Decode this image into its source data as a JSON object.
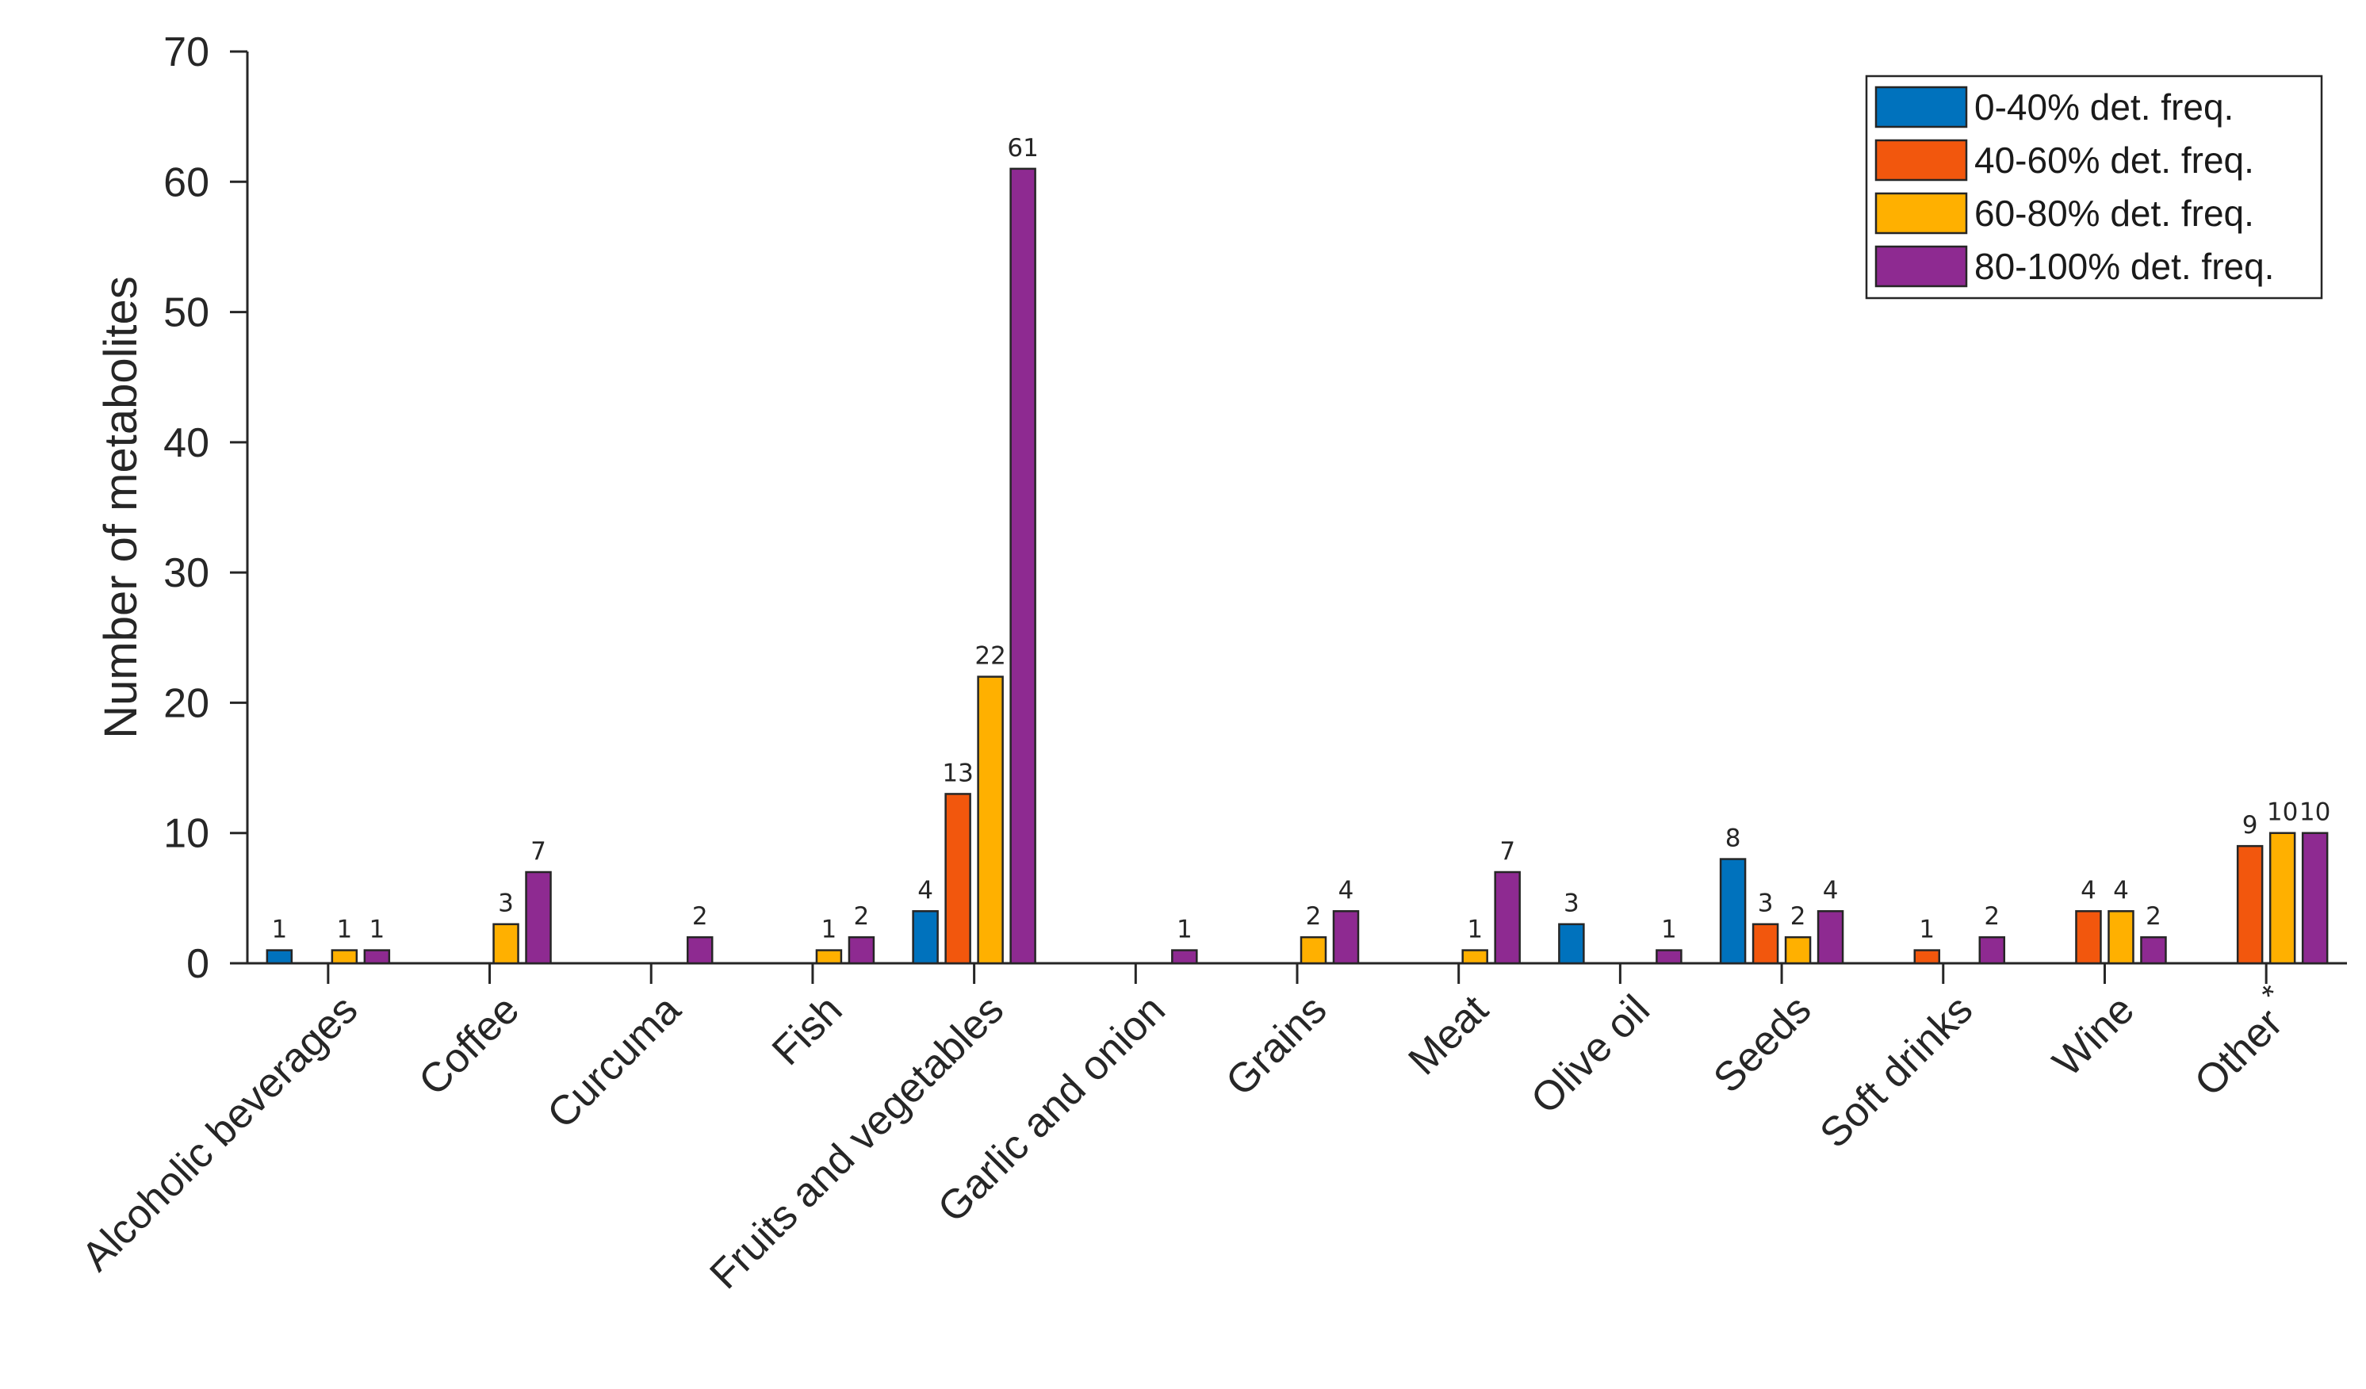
{
  "chart_data": {
    "type": "bar",
    "title": "",
    "xlabel": "",
    "ylabel": "Number of metabolites",
    "ylim": [
      0,
      70
    ],
    "yticks": [
      0,
      10,
      20,
      30,
      40,
      50,
      60,
      70
    ],
    "grid": false,
    "legend_position": "top-right",
    "categories": [
      "Alcoholic beverages",
      "Coffee",
      "Curcuma",
      "Fish",
      "Fruits and vegetables",
      "Garlic and onion",
      "Grains",
      "Meat",
      "Olive oil",
      "Seeds",
      "Soft drinks",
      "Wine",
      "Other"
    ],
    "category_marks": {
      "Other": "*"
    },
    "series": [
      {
        "name": "0-40% det. freq.",
        "color": "#0072BD",
        "values": [
          1,
          0,
          0,
          0,
          4,
          0,
          0,
          0,
          3,
          8,
          0,
          0,
          0
        ]
      },
      {
        "name": "40-60% det. freq.",
        "color": "#F2570D",
        "values": [
          0,
          0,
          0,
          0,
          13,
          0,
          0,
          0,
          0,
          3,
          1,
          4,
          9
        ]
      },
      {
        "name": "60-80% det. freq.",
        "color": "#FFB000",
        "values": [
          1,
          3,
          0,
          1,
          22,
          0,
          2,
          1,
          0,
          2,
          0,
          4,
          10
        ]
      },
      {
        "name": "80-100% det. freq.",
        "color": "#8E2A91",
        "values": [
          1,
          7,
          2,
          2,
          61,
          1,
          4,
          7,
          1,
          4,
          2,
          2,
          10
        ]
      }
    ]
  }
}
